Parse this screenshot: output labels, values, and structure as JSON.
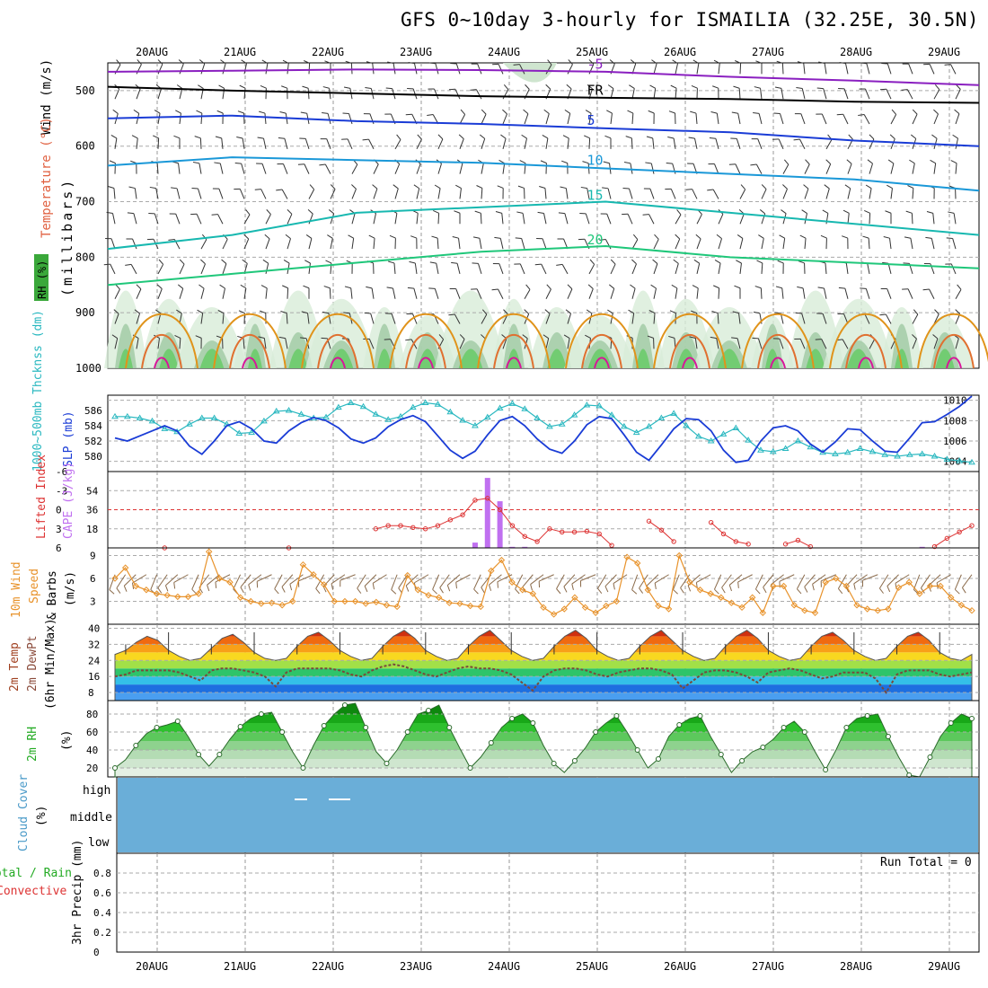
{
  "title": "GFS 0~10day 3-hourly for ISMAILIA (32.25E, 30.5N)",
  "dates": [
    "20AUG",
    "21AUG",
    "22AUG",
    "23AUG",
    "24AUG",
    "25AUG",
    "26AUG",
    "27AUG",
    "28AUG",
    "29AUG"
  ],
  "panel_labels": {
    "upper": {
      "wind": "Wind (m/s)",
      "temp": "Temperature (°C)",
      "rh": "RH (%)",
      "units": "(millibars)"
    },
    "thick": {
      "thk": "1000~500mb Thcknss (dm)",
      "slp": "SLP (mb)"
    },
    "li": {
      "li": "Lifted Index",
      "cape": "CAPE (J/kg)"
    },
    "wind": {
      "a": "10m Wind",
      "b": "Speed",
      "c": "& Barbs",
      "unit": "(m/s)"
    },
    "temp": {
      "a": "2m Temp",
      "b": "2m DewPt",
      "c": "(6hr Min/Max)"
    },
    "rh": {
      "a": "2m RH",
      "unit": "(%)"
    },
    "cloud": {
      "a": "Cloud Cover",
      "unit": "(%)",
      "high": "high",
      "middle": "middle",
      "low": "low"
    },
    "precip": {
      "total": "Total / Rain",
      "conv": "Convective",
      "axis": "3hr Precip (mm)",
      "run_total": "Run Total = 0"
    }
  },
  "colors": {
    "purple": "#8a1fc0",
    "black": "#000000",
    "blue": "#1a3cd6",
    "lightblue": "#1a98d8",
    "teal": "#17b8b0",
    "green": "#1fc77a",
    "orange": "#e0931a",
    "magenta": "#d8159a",
    "slp": "#1a3cd6",
    "thick": "#2ab8c0",
    "li": "#dd3333",
    "cape": "#c070f0",
    "windline": "#e8922a",
    "rh": "#22aa22",
    "cloud": "#6aaed8"
  },
  "chart_data": [
    {
      "type": "contour",
      "name": "upper-air",
      "ylabel": "millibars",
      "ylim": [
        1000,
        450
      ],
      "yticks": [
        500,
        600,
        700,
        800,
        900,
        1000
      ],
      "isotherms": [
        {
          "label": "-5",
          "color": "purple",
          "levels": [
            466,
            464,
            462,
            463,
            466,
            475,
            482,
            490
          ]
        },
        {
          "label": "FR",
          "color": "black",
          "levels": [
            493,
            500,
            505,
            510,
            513,
            515,
            520,
            522
          ]
        },
        {
          "label": "5",
          "color": "blue",
          "levels": [
            550,
            545,
            555,
            560,
            568,
            575,
            590,
            600
          ]
        },
        {
          "label": "10",
          "color": "lightblue",
          "levels": [
            635,
            620,
            625,
            630,
            640,
            650,
            660,
            680
          ]
        },
        {
          "label": "15",
          "color": "teal",
          "levels": [
            785,
            760,
            720,
            710,
            700,
            720,
            740,
            760
          ]
        },
        {
          "label": "20",
          "color": "green",
          "levels": [
            850,
            830,
            810,
            790,
            780,
            800,
            810,
            820
          ]
        }
      ]
    },
    {
      "type": "line",
      "name": "thickness-slp",
      "thickness_ylim": [
        578,
        588
      ],
      "thickness_yticks": [
        580,
        582,
        584,
        586
      ],
      "slp_ylim": [
        1003,
        1010.5
      ],
      "slp_yticks": [
        1004,
        1006,
        1008,
        1010
      ],
      "thickness": [
        585.2,
        585.2,
        585.0,
        584.6,
        583.6,
        583.2,
        584.2,
        585.0,
        585.0,
        584.2,
        583.0,
        583.1,
        584.6,
        585.9,
        586.0,
        585.5,
        585.0,
        585.1,
        586.4,
        587.0,
        586.5,
        585.5,
        584.8,
        585.2,
        586.4,
        587.0,
        586.8,
        585.8,
        584.7,
        584.0,
        585.1,
        586.3,
        586.9,
        586.2,
        585.0,
        583.9,
        584.2,
        585.4,
        586.7,
        586.6,
        585.4,
        583.9,
        583.1,
        583.9,
        585.0,
        585.6,
        584.0,
        582.6,
        582.0,
        582.9,
        583.7,
        582.1,
        580.8,
        580.6,
        581.0,
        582.0,
        581.2,
        580.5,
        580.3,
        580.5,
        581.0,
        580.6,
        580.2,
        580.0,
        580.2,
        580.3,
        580.0,
        579.6,
        579.4,
        579.2
      ],
      "slp": [
        1006.3,
        1006.0,
        1006.5,
        1007.0,
        1007.5,
        1007.0,
        1005.5,
        1004.7,
        1006.0,
        1007.5,
        1007.9,
        1007.2,
        1006.0,
        1005.8,
        1007.0,
        1007.8,
        1008.3,
        1008.0,
        1007.3,
        1006.2,
        1005.8,
        1006.3,
        1007.4,
        1008.1,
        1008.5,
        1007.9,
        1006.5,
        1005.1,
        1004.3,
        1005.0,
        1006.6,
        1008.0,
        1008.4,
        1007.5,
        1006.2,
        1005.2,
        1004.8,
        1006.0,
        1007.6,
        1008.4,
        1008.2,
        1006.6,
        1004.9,
        1004.1,
        1005.6,
        1007.2,
        1008.2,
        1008.1,
        1007.0,
        1005.1,
        1003.9,
        1004.1,
        1006.0,
        1007.3,
        1007.5,
        1007.0,
        1005.7,
        1004.9,
        1005.9,
        1007.2,
        1007.1,
        1006.0,
        1005.0,
        1004.9,
        1006.3,
        1007.8,
        1007.9,
        1008.6,
        1009.4,
        1010.4
      ]
    },
    {
      "type": "bar",
      "name": "lifted-index-cape",
      "li_yticks": [
        6,
        3,
        0,
        -3,
        -6
      ],
      "cape_yticks": [
        18,
        36,
        54
      ],
      "cape_ylim": [
        0,
        72
      ],
      "li": [
        null,
        null,
        null,
        null,
        6.0,
        null,
        null,
        null,
        null,
        null,
        null,
        null,
        null,
        null,
        6.0,
        null,
        null,
        null,
        null,
        null,
        null,
        3.0,
        2.5,
        2.5,
        2.8,
        3.0,
        2.5,
        1.6,
        0.8,
        -1.5,
        -1.8,
        0.0,
        2.5,
        4.2,
        5.0,
        3.0,
        3.5,
        3.5,
        3.4,
        3.8,
        5.6,
        null,
        null,
        1.8,
        3.2,
        5.0,
        null,
        null,
        2.0,
        3.8,
        5.0,
        5.4,
        null,
        null,
        5.4,
        4.8,
        5.8,
        null,
        null,
        null,
        null,
        null,
        null,
        null,
        null,
        null,
        5.8,
        4.5,
        3.5,
        2.5
      ],
      "cape": [
        0,
        0,
        0,
        0,
        0,
        0,
        0,
        0,
        0,
        0,
        0,
        0,
        0,
        0,
        0,
        0,
        0,
        0,
        0,
        0,
        0,
        0,
        0,
        0,
        0,
        0,
        0,
        0,
        0,
        5,
        66,
        44,
        1,
        1,
        0,
        0,
        0,
        0,
        0,
        0,
        0,
        0,
        0,
        0,
        0,
        0,
        0,
        0,
        0,
        0,
        0,
        0,
        0,
        0,
        0,
        0,
        0,
        0,
        0,
        0,
        0,
        0,
        0,
        0,
        0,
        1,
        0,
        0,
        0,
        0
      ]
    },
    {
      "type": "line",
      "name": "10m-wind",
      "ylabel": "m/s",
      "ylim": [
        0,
        10
      ],
      "yticks": [
        3,
        6,
        9
      ],
      "speed": [
        6.0,
        7.4,
        5.0,
        4.5,
        4.0,
        3.8,
        3.6,
        3.6,
        4.0,
        9.5,
        6.0,
        5.5,
        3.5,
        3.0,
        2.7,
        2.8,
        2.5,
        3.0,
        7.8,
        6.5,
        5.2,
        3.0,
        3.0,
        3.0,
        2.7,
        2.9,
        2.5,
        2.3,
        6.4,
        4.5,
        3.8,
        3.5,
        2.8,
        2.7,
        2.4,
        2.3,
        7.0,
        8.4,
        5.5,
        4.5,
        4.0,
        2.2,
        1.3,
        2.0,
        3.5,
        2.2,
        1.5,
        2.4,
        3.0,
        8.8,
        8.0,
        4.5,
        2.4,
        2.0,
        9.0,
        5.5,
        4.5,
        4.0,
        3.5,
        2.8,
        2.2,
        3.5,
        1.5,
        5.0,
        5.0,
        2.5,
        1.8,
        1.5,
        5.5,
        6.0,
        5.0,
        2.5,
        2.0,
        1.8,
        2.0,
        4.8,
        5.5,
        4.0,
        5.0,
        5.0,
        3.5,
        2.5,
        1.8
      ]
    },
    {
      "type": "area",
      "name": "2m-temp-dewpt",
      "ylabel": "°C",
      "ylim": [
        4,
        42
      ],
      "yticks": [
        8,
        16,
        24,
        32,
        40
      ],
      "temp": [
        27,
        29,
        33,
        36,
        34,
        29,
        26,
        24,
        25,
        30,
        35,
        37,
        33,
        28,
        25,
        24,
        25,
        31,
        36,
        38,
        34,
        29,
        26,
        24,
        25,
        31,
        36,
        39,
        35,
        29,
        26,
        24,
        25,
        31,
        36,
        39,
        34,
        29,
        26,
        24,
        25,
        31,
        36,
        39,
        35,
        29,
        26,
        24,
        25,
        31,
        36,
        39,
        34,
        29,
        26,
        24,
        25,
        31,
        36,
        39,
        35,
        29,
        26,
        24,
        25,
        31,
        36,
        38,
        34,
        29,
        26,
        24,
        25,
        31,
        36,
        38,
        34,
        28,
        25,
        24,
        27
      ],
      "dewpt": [
        16,
        17,
        19,
        19,
        19,
        19,
        18,
        16,
        14,
        19,
        20,
        20,
        19,
        18,
        16,
        11,
        18,
        20,
        20,
        20,
        20,
        19,
        17,
        16,
        19,
        21,
        22,
        21,
        19,
        17,
        16,
        18,
        20,
        21,
        20,
        20,
        19,
        17,
        13,
        9,
        16,
        19,
        20,
        20,
        19,
        17,
        16,
        18,
        19,
        20,
        20,
        19,
        17,
        10,
        14,
        18,
        19,
        19,
        18,
        16,
        13,
        18,
        19,
        20,
        19,
        17,
        15,
        16,
        18,
        18,
        18,
        15,
        8,
        17,
        19,
        19,
        19,
        17,
        16,
        17,
        18
      ]
    },
    {
      "type": "area",
      "name": "2m-rh",
      "ylabel": "%",
      "ylim": [
        10,
        95
      ],
      "yticks": [
        20,
        40,
        60,
        80
      ],
      "rh": [
        20,
        29,
        45,
        58,
        65,
        68,
        72,
        55,
        35,
        22,
        35,
        52,
        66,
        75,
        80,
        82,
        60,
        38,
        20,
        45,
        67,
        80,
        90,
        92,
        65,
        38,
        25,
        40,
        60,
        80,
        84,
        90,
        65,
        42,
        20,
        32,
        48,
        65,
        75,
        80,
        70,
        45,
        25,
        15,
        28,
        42,
        60,
        70,
        78,
        60,
        40,
        20,
        30,
        55,
        68,
        75,
        78,
        55,
        35,
        15,
        28,
        38,
        43,
        52,
        65,
        72,
        60,
        38,
        18,
        40,
        65,
        75,
        78,
        80,
        55,
        32,
        12,
        10,
        32,
        55,
        70,
        80,
        75
      ]
    },
    {
      "type": "heatmap",
      "name": "cloud-cover",
      "rows": [
        "high",
        "middle",
        "low"
      ],
      "marks": [
        {
          "row": "high",
          "from": "21AUG 18Z",
          "to": "21AUG 21Z"
        },
        {
          "row": "high",
          "from": "22AUG 00Z",
          "to": "22AUG 06Z"
        }
      ]
    },
    {
      "type": "bar",
      "name": "3hr-precip",
      "ylabel": "3hr Precip (mm)",
      "ylim": [
        0,
        1
      ],
      "yticks": [
        0,
        0.2,
        0.4,
        0.6,
        0.8
      ],
      "values": [],
      "run_total": 0
    }
  ]
}
